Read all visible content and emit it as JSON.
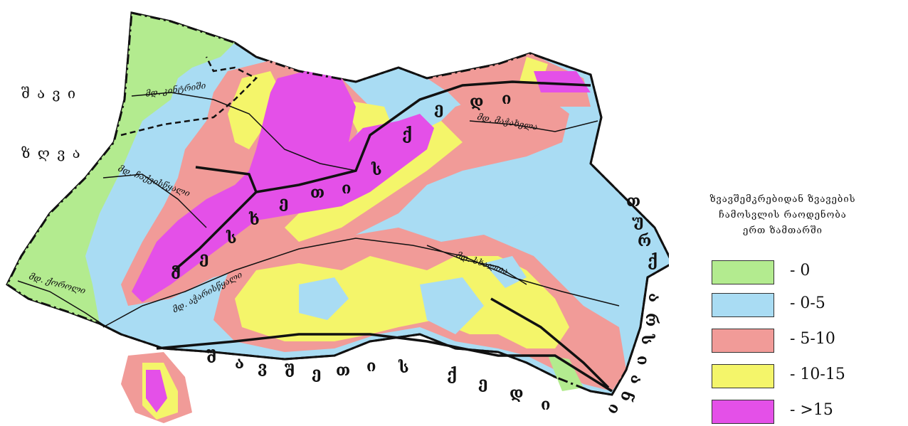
{
  "map": {
    "sea": {
      "line1": "შ ა ვ ი",
      "line2": "ზ ღ ვ ა"
    },
    "rivers": [
      {
        "id": "kintrishi",
        "label": "მდ. კინტრიში"
      },
      {
        "id": "chakvistskali",
        "label": "მდ. ჩაქვისწყალი"
      },
      {
        "id": "korolistskali",
        "label": "მდ. ქოროლი"
      },
      {
        "id": "acharistskali",
        "label": "მდ. აჭარისწყალი"
      },
      {
        "id": "machakhela",
        "label": "მდ. მაჭახელა"
      },
      {
        "id": "skhalta",
        "label": "მდ. სხალთა"
      }
    ],
    "ridge_mesketi": [
      "მ",
      "ე",
      "ს",
      "ხ",
      "ე",
      "თ",
      "ი",
      "ს",
      "ქ",
      "ე",
      "დ",
      "ი"
    ],
    "ridge_shavsheti": [
      "შ",
      "ა",
      "ვ",
      "შ",
      "ე",
      "თ",
      "ი",
      "ს",
      "ქ",
      "ე",
      "დ",
      "ი"
    ],
    "turkey_letters": [
      "თ",
      "უ",
      "რ",
      "ქ",
      "ე",
      "თ"
    ],
    "arsiani_letters": [
      "ა",
      "რ",
      "ს",
      "ი",
      "ა",
      "ნ",
      "ი"
    ]
  },
  "legend": {
    "title_lines": [
      "ზვავშემკრებიდან ზვავების",
      "ჩამოსვლის რაოდენობა",
      "ერთ ზამთარში"
    ],
    "items": [
      {
        "label": "- 0",
        "color": "#b3eb8f"
      },
      {
        "label": "- 0-5",
        "color": "#a9dcf3"
      },
      {
        "label": "- 5-10",
        "color": "#f19b98"
      },
      {
        "label": "- 10-15",
        "color": "#f4f56a"
      },
      {
        "label": "- >15",
        "color": "#e450e8"
      }
    ]
  },
  "colors": {
    "zone_0": "#b3eb8f",
    "zone_0_5": "#a9dcf3",
    "zone_5_10": "#f19b98",
    "zone_10_15": "#f4f56a",
    "zone_15": "#e450e8",
    "border": "#111111"
  }
}
